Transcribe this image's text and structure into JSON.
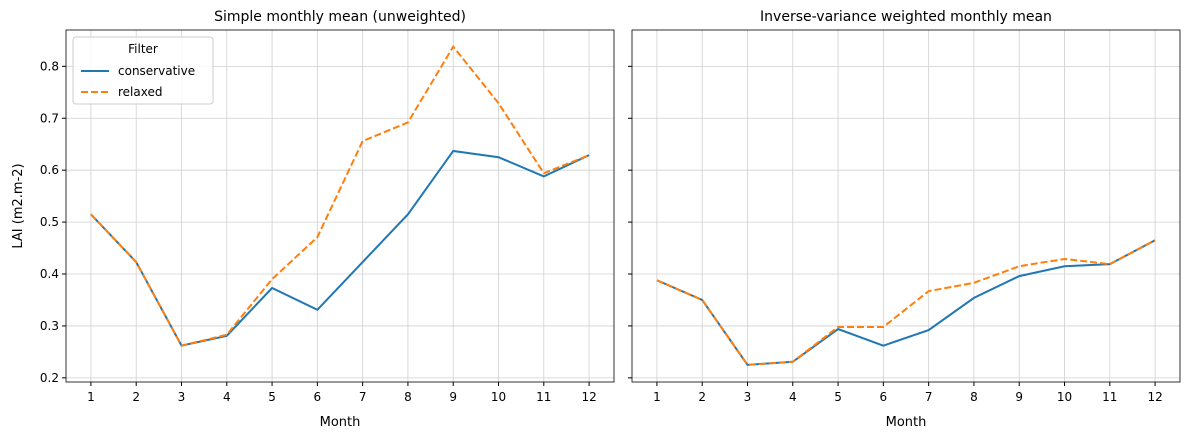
{
  "chart_data": [
    {
      "type": "line",
      "title": "Simple monthly mean (unweighted)",
      "x_label": "Month",
      "y_label": "LAI (m2.m-2)",
      "x": [
        1,
        2,
        3,
        4,
        5,
        6,
        7,
        8,
        9,
        10,
        11,
        12
      ],
      "series": [
        {
          "name": "conservative",
          "color": "#1f77b4",
          "linestyle": "solid",
          "values": [
            0.515,
            0.423,
            0.262,
            0.281,
            0.373,
            0.331,
            0.423,
            0.515,
            0.637,
            0.625,
            0.588,
            0.629
          ]
        },
        {
          "name": "relaxed",
          "color": "#ff7f0e",
          "linestyle": "dashed",
          "values": [
            0.515,
            0.423,
            0.262,
            0.283,
            0.39,
            0.471,
            0.656,
            0.692,
            0.838,
            0.729,
            0.594,
            0.629
          ]
        }
      ],
      "xlim": [
        0.45,
        12.55
      ],
      "xticks": [
        1,
        2,
        3,
        4,
        5,
        6,
        7,
        8,
        9,
        10,
        11,
        12
      ],
      "ylim": [
        0.192,
        0.87
      ],
      "yticks": [
        0.2,
        0.3,
        0.4,
        0.5,
        0.6,
        0.7,
        0.8
      ],
      "grid": true,
      "legend": {
        "title": "Filter",
        "loc": "upper left"
      }
    },
    {
      "type": "line",
      "title": "Inverse-variance weighted monthly mean",
      "x_label": "Month",
      "x": [
        1,
        2,
        3,
        4,
        5,
        6,
        7,
        8,
        9,
        10,
        11,
        12
      ],
      "series": [
        {
          "name": "conservative",
          "color": "#1f77b4",
          "linestyle": "solid",
          "values": [
            0.388,
            0.35,
            0.225,
            0.231,
            0.294,
            0.262,
            0.292,
            0.354,
            0.396,
            0.415,
            0.419,
            0.465
          ]
        },
        {
          "name": "relaxed",
          "color": "#ff7f0e",
          "linestyle": "dashed",
          "values": [
            0.388,
            0.35,
            0.225,
            0.231,
            0.298,
            0.298,
            0.367,
            0.383,
            0.415,
            0.429,
            0.419,
            0.465
          ]
        }
      ],
      "xlim": [
        0.45,
        12.55
      ],
      "xticks": [
        1,
        2,
        3,
        4,
        5,
        6,
        7,
        8,
        9,
        10,
        11,
        12
      ],
      "ylim": [
        0.192,
        0.87
      ],
      "yticks": [
        0.2,
        0.3,
        0.4,
        0.5,
        0.6,
        0.7,
        0.8
      ],
      "grid": true,
      "shared_y": true
    }
  ]
}
